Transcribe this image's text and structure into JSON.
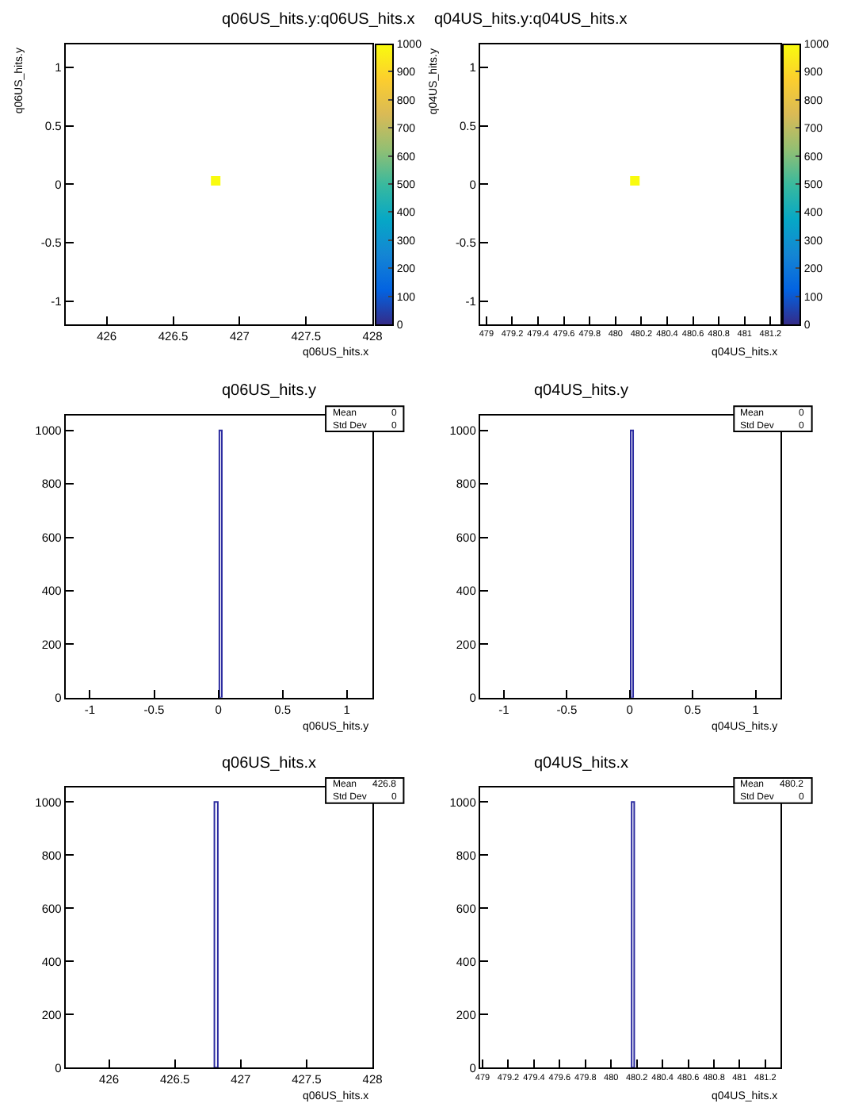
{
  "chart_data": [
    {
      "type": "scatter",
      "title": "q06US_hits.y:q06US_hits.x",
      "xlabel": "q06US_hits.x",
      "ylabel": "q06US_hits.y",
      "x": [
        426.82
      ],
      "values": [
        0.03
      ],
      "cvalues": [
        1000
      ],
      "marker": "square",
      "clim": [
        0,
        1000
      ],
      "cticks": [
        0,
        100,
        200,
        300,
        400,
        500,
        600,
        700,
        800,
        900,
        1000
      ],
      "xlim": [
        425.69,
        428
      ],
      "ylim": [
        -1.2,
        1.2
      ],
      "xticks": [
        426,
        426.5,
        427,
        427.5,
        428
      ],
      "yticks": [
        -1,
        -0.5,
        0,
        0.5,
        1
      ]
    },
    {
      "type": "scatter",
      "title": "q04US_hits.y:q04US_hits.x",
      "xlabel": "q04US_hits.x",
      "ylabel": "q04US_hits.y",
      "x": [
        480.15
      ],
      "values": [
        0.03
      ],
      "cvalues": [
        1000
      ],
      "marker": "square",
      "clim": [
        0,
        1000
      ],
      "cticks": [
        0,
        100,
        200,
        300,
        400,
        500,
        600,
        700,
        800,
        900,
        1000
      ],
      "xlim": [
        478.95,
        481.28
      ],
      "ylim": [
        -1.2,
        1.2
      ],
      "xticks": [
        479,
        479.2,
        479.4,
        479.6,
        479.8,
        480,
        480.2,
        480.4,
        480.6,
        480.8,
        481,
        481.2
      ],
      "yticks": [
        -1,
        -0.5,
        0,
        0.5,
        1
      ]
    },
    {
      "type": "histogram",
      "title": "q06US_hits.y",
      "xlabel": "q06US_hits.y",
      "bins": [
        0.008,
        0.027
      ],
      "values": [
        1000
      ],
      "color": "#2c2ca0",
      "xlim": [
        -1.19,
        1.2
      ],
      "ylim": [
        0,
        1055
      ],
      "xticks": [
        -1,
        -0.5,
        0,
        0.5,
        1
      ],
      "yticks": [
        0,
        200,
        400,
        600,
        800,
        1000
      ],
      "annotations": [
        "Mean",
        "0",
        "Std Dev",
        "0"
      ]
    },
    {
      "type": "histogram",
      "title": "q04US_hits.y",
      "xlabel": "q04US_hits.y",
      "bins": [
        0.008,
        0.027
      ],
      "values": [
        1000
      ],
      "color": "#2c2ca0",
      "xlim": [
        -1.19,
        1.2
      ],
      "ylim": [
        0,
        1055
      ],
      "xticks": [
        -1,
        -0.5,
        0,
        0.5,
        1
      ],
      "yticks": [
        0,
        200,
        400,
        600,
        800,
        1000
      ],
      "annotations": [
        "Mean",
        "0",
        "Std Dev",
        "0"
      ]
    },
    {
      "type": "histogram",
      "title": "q06US_hits.x",
      "xlabel": "q06US_hits.x",
      "bins": [
        426.8,
        426.826
      ],
      "values": [
        1000
      ],
      "color": "#2c2ca0",
      "xlim": [
        425.67,
        428
      ],
      "ylim": [
        0,
        1055
      ],
      "xticks": [
        426,
        426.5,
        427,
        427.5,
        428
      ],
      "yticks": [
        0,
        200,
        400,
        600,
        800,
        1000
      ],
      "annotations": [
        "Mean",
        "426.8",
        "Std Dev",
        "0"
      ]
    },
    {
      "type": "histogram",
      "title": "q04US_hits.x",
      "xlabel": "q04US_hits.x",
      "bins": [
        480.16,
        480.18
      ],
      "values": [
        1000
      ],
      "color": "#2c2ca0",
      "xlim": [
        478.98,
        481.32
      ],
      "ylim": [
        0,
        1055
      ],
      "xticks": [
        479,
        479.2,
        479.4,
        479.6,
        479.8,
        480,
        480.2,
        480.4,
        480.6,
        480.8,
        481,
        481.2
      ],
      "yticks": [
        0,
        200,
        400,
        600,
        800,
        1000
      ],
      "annotations": [
        "Mean",
        "480.2",
        "Std Dev",
        "0"
      ]
    }
  ]
}
